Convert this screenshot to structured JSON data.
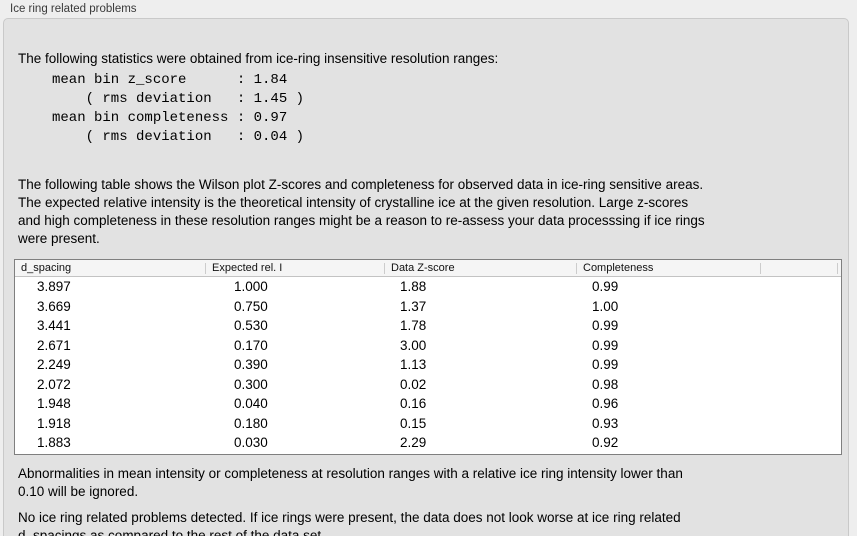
{
  "panel": {
    "title": "Ice ring related problems"
  },
  "content": {
    "intro": "The following statistics were obtained from ice-ring insensitive resolution ranges:",
    "stats_block": "mean bin z_score      : 1.84\n    ( rms deviation   : 1.45 )\nmean bin completeness : 0.97\n    ( rms deviation   : 0.04 )",
    "table_description": "The following table shows the Wilson plot Z-scores and completeness for observed data in ice-ring sensitive areas.\nThe expected relative intensity is the theoretical intensity of crystalline ice at the given resolution. Large z-scores\nand high completeness in these resolution ranges might be a reason to re-assess your data processsing if ice rings\nwere present.",
    "ignore_note": "Abnormalities in mean intensity or completeness at resolution ranges with a relative ice ring intensity lower than\n0.10 will be ignored.",
    "conclusion": "No ice ring related problems detected. If ice rings were present, the data does not look worse at ice ring related\nd_spacings as compared to the rest of the data set."
  },
  "table": {
    "columns": [
      "d_spacing",
      "Expected rel. I",
      "Data Z-score",
      "Completeness",
      ""
    ],
    "rows": [
      {
        "d_spacing": "3.897",
        "expected_rel_i": "1.000",
        "data_z_score": "1.88",
        "completeness": "0.99"
      },
      {
        "d_spacing": "3.669",
        "expected_rel_i": "0.750",
        "data_z_score": "1.37",
        "completeness": "1.00"
      },
      {
        "d_spacing": "3.441",
        "expected_rel_i": "0.530",
        "data_z_score": "1.78",
        "completeness": "0.99"
      },
      {
        "d_spacing": "2.671",
        "expected_rel_i": "0.170",
        "data_z_score": "3.00",
        "completeness": "0.99"
      },
      {
        "d_spacing": "2.249",
        "expected_rel_i": "0.390",
        "data_z_score": "1.13",
        "completeness": "0.99"
      },
      {
        "d_spacing": "2.072",
        "expected_rel_i": "0.300",
        "data_z_score": "0.02",
        "completeness": "0.98"
      },
      {
        "d_spacing": "1.948",
        "expected_rel_i": "0.040",
        "data_z_score": "0.16",
        "completeness": "0.96"
      },
      {
        "d_spacing": "1.918",
        "expected_rel_i": "0.180",
        "data_z_score": "0.15",
        "completeness": "0.93"
      },
      {
        "d_spacing": "1.883",
        "expected_rel_i": "0.030",
        "data_z_score": "2.29",
        "completeness": "0.92"
      }
    ]
  },
  "colors": {
    "page_bg": "#eeeeee",
    "panel_bg": "#e2e2e2",
    "panel_border": "#c9c9c9",
    "table_border": "#7f7f7f",
    "table_header_bg": "#f5f5f5"
  }
}
